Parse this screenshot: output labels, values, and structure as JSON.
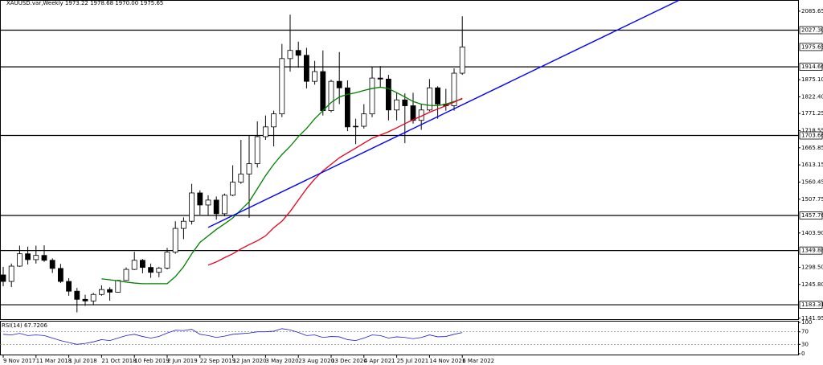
{
  "chart_data": {
    "type": "candlestick",
    "title": "XAUUSD.var,Weekly  1973.22 1978.68 1970.00 1975.65",
    "categories": [
      "9 Nov 2017",
      null,
      null,
      null,
      "11 Mar 2018",
      null,
      null,
      null,
      "1 Jul 2018",
      null,
      null,
      null,
      "21 Oct 2018",
      null,
      null,
      null,
      "10 Feb 2019",
      null,
      null,
      null,
      "2 Jun 2019",
      null,
      null,
      null,
      "22 Sep 2019",
      null,
      null,
      null,
      "12 Jan 2020",
      null,
      null,
      null,
      "3 May 2020",
      null,
      null,
      null,
      "23 Aug 2020",
      null,
      null,
      null,
      "13 Dec 2020",
      null,
      null,
      null,
      "4 Apr 2021",
      null,
      null,
      null,
      "25 Jul 2021",
      null,
      null,
      null,
      "14 Nov 2021",
      null,
      null,
      null,
      "6 Mar 2022"
    ],
    "open": [
      1275,
      1255,
      1302,
      1340,
      1322,
      1335,
      1320,
      1295,
      1255,
      1225,
      1200,
      1195,
      1215,
      1230,
      1222,
      1258,
      1292,
      1320,
      1298,
      1283,
      1296,
      1345,
      1418,
      1440,
      1527,
      1490,
      1505,
      1463,
      1520,
      1560,
      1585,
      1617,
      1700,
      1730,
      1770,
      1940,
      1965,
      1950,
      1870,
      1900,
      1780,
      1870,
      1850,
      1730,
      1732,
      1770,
      1880,
      1877,
      1782,
      1813,
      1795,
      1750,
      1782,
      1850,
      1800,
      1795,
      1895
    ],
    "high": [
      1300,
      1310,
      1365,
      1362,
      1365,
      1366,
      1326,
      1309,
      1265,
      1235,
      1214,
      1220,
      1243,
      1237,
      1260,
      1298,
      1346,
      1324,
      1310,
      1300,
      1358,
      1440,
      1452,
      1555,
      1535,
      1520,
      1516,
      1525,
      1612,
      1690,
      1704,
      1747,
      1765,
      1780,
      1985,
      2075,
      1992,
      1973,
      1933,
      1965,
      1875,
      1960,
      1873,
      1755,
      1800,
      1915,
      1917,
      1890,
      1835,
      1833,
      1835,
      1800,
      1877,
      1855,
      1847,
      1910,
      2070
    ],
    "low": [
      1240,
      1238,
      1300,
      1307,
      1310,
      1315,
      1281,
      1250,
      1211,
      1160,
      1180,
      1182,
      1211,
      1196,
      1221,
      1256,
      1290,
      1280,
      1266,
      1268,
      1292,
      1340,
      1385,
      1430,
      1460,
      1458,
      1445,
      1455,
      1517,
      1555,
      1451,
      1605,
      1690,
      1670,
      1760,
      1900,
      1912,
      1848,
      1860,
      1765,
      1775,
      1800,
      1717,
      1677,
      1725,
      1760,
      1850,
      1750,
      1750,
      1680,
      1740,
      1721,
      1778,
      1755,
      1780,
      1780,
      1890
    ],
    "close": [
      1255,
      1302,
      1340,
      1322,
      1335,
      1320,
      1295,
      1255,
      1225,
      1200,
      1195,
      1215,
      1230,
      1222,
      1258,
      1292,
      1320,
      1298,
      1283,
      1296,
      1345,
      1418,
      1440,
      1527,
      1490,
      1505,
      1463,
      1520,
      1560,
      1585,
      1617,
      1700,
      1730,
      1770,
      1940,
      1965,
      1950,
      1870,
      1900,
      1780,
      1870,
      1850,
      1730,
      1732,
      1770,
      1880,
      1877,
      1782,
      1813,
      1795,
      1750,
      1782,
      1850,
      1800,
      1795,
      1895,
      1975.65
    ],
    "candle_color": "#000000",
    "lines": [
      {
        "color": "#008000",
        "values": [
          null,
          null,
          null,
          null,
          null,
          null,
          null,
          null,
          null,
          null,
          null,
          null,
          1263,
          1260,
          1257,
          1253,
          1250,
          1248,
          1248,
          1248,
          1248,
          1270,
          1300,
          1340,
          1375,
          1395,
          1415,
          1432,
          1450,
          1475,
          1500,
          1540,
          1580,
          1615,
          1645,
          1670,
          1700,
          1725,
          1755,
          1780,
          1805,
          1822,
          1830,
          1835,
          1842,
          1848,
          1852,
          1848,
          1835,
          1822,
          1808,
          1800,
          1796,
          1795,
          1800,
          1808,
          1816
        ]
      },
      {
        "color": "#e8001c",
        "values": [
          null,
          null,
          null,
          null,
          null,
          null,
          null,
          null,
          null,
          null,
          null,
          null,
          null,
          null,
          null,
          null,
          null,
          null,
          null,
          null,
          null,
          null,
          null,
          null,
          null,
          1305,
          1315,
          1328,
          1340,
          1355,
          1368,
          1380,
          1395,
          1420,
          1440,
          1470,
          1505,
          1540,
          1570,
          1595,
          1615,
          1635,
          1650,
          1665,
          1680,
          1695,
          1705,
          1715,
          1727,
          1740,
          1752,
          1763,
          1775,
          1785,
          1795,
          1806,
          1818
        ]
      }
    ],
    "trendline": {
      "color": "#0000ff",
      "x": [
        25,
        82.5
      ],
      "y": [
        1421,
        2120
      ]
    },
    "levels": [
      {
        "value": 2027.3,
        "label": "2027.30"
      },
      1914.66,
      1703.66,
      1457.76,
      1349.88,
      1183.31
    ],
    "last_price": 1975.65,
    "ylim": [
      1139,
      2120
    ],
    "yticks": [
      2085.65,
      {
        "value": 1875.1,
        "label": "1875.10"
      },
      {
        "value": 1822.4,
        "label": "1822.40"
      },
      1771.25,
      1718.55,
      1665.85,
      1613.15,
      1560.45,
      1507.75,
      {
        "value": 1403.9,
        "label": "1403.90"
      },
      {
        "value": 1298.5,
        "label": "1298.50"
      },
      {
        "value": 1245.8,
        "label": "1245.80"
      },
      1141.95
    ],
    "rsi": {
      "label": "RSI(14) 67.7206",
      "color": "#1c1cc8",
      "values": [
        62,
        60,
        65,
        58,
        60,
        58,
        50,
        42,
        36,
        30,
        33,
        38,
        45,
        42,
        50,
        58,
        62,
        55,
        50,
        55,
        66,
        75,
        74,
        78,
        62,
        58,
        52,
        56,
        62,
        64,
        66,
        70,
        70,
        72,
        80,
        76,
        68,
        58,
        60,
        52,
        55,
        54,
        45,
        42,
        50,
        60,
        58,
        50,
        54,
        52,
        48,
        52,
        60,
        54,
        55,
        62,
        67.7206
      ],
      "ylim": [
        0,
        100
      ],
      "yticks": [
        100,
        70,
        30,
        0
      ],
      "levels": [
        70,
        30
      ]
    }
  }
}
